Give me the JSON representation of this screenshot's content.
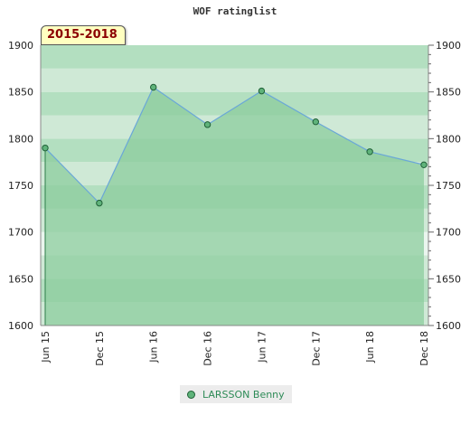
{
  "chart_data": {
    "type": "area",
    "title": "WOF ratinglist",
    "period_label": "2015-2018",
    "x": [
      "Jun 15",
      "Dec 15",
      "Jun 16",
      "Dec 16",
      "Jun 17",
      "Dec 17",
      "Jun 18",
      "Dec 18"
    ],
    "series": [
      {
        "name": "LARSSON Benny",
        "values": [
          1790,
          1731,
          1855,
          1815,
          1851,
          1818,
          1786,
          1772
        ]
      }
    ],
    "ylim": [
      1600,
      1900
    ],
    "y_ticks": [
      1600,
      1650,
      1700,
      1750,
      1800,
      1850,
      1900
    ],
    "y_axis_both_sides": true,
    "grid": false,
    "legend_position": "bottom-center",
    "colors": {
      "area_fill": "#8ccc9e",
      "line": "#6aa7d8",
      "marker_fill": "#5fb37a",
      "marker_stroke": "#1f5f36",
      "band_light": "#cfe9d6",
      "band_mid": "#b3dfc0",
      "band_pale": "#eaf5ee",
      "legend_text": "#2e8b57"
    }
  }
}
